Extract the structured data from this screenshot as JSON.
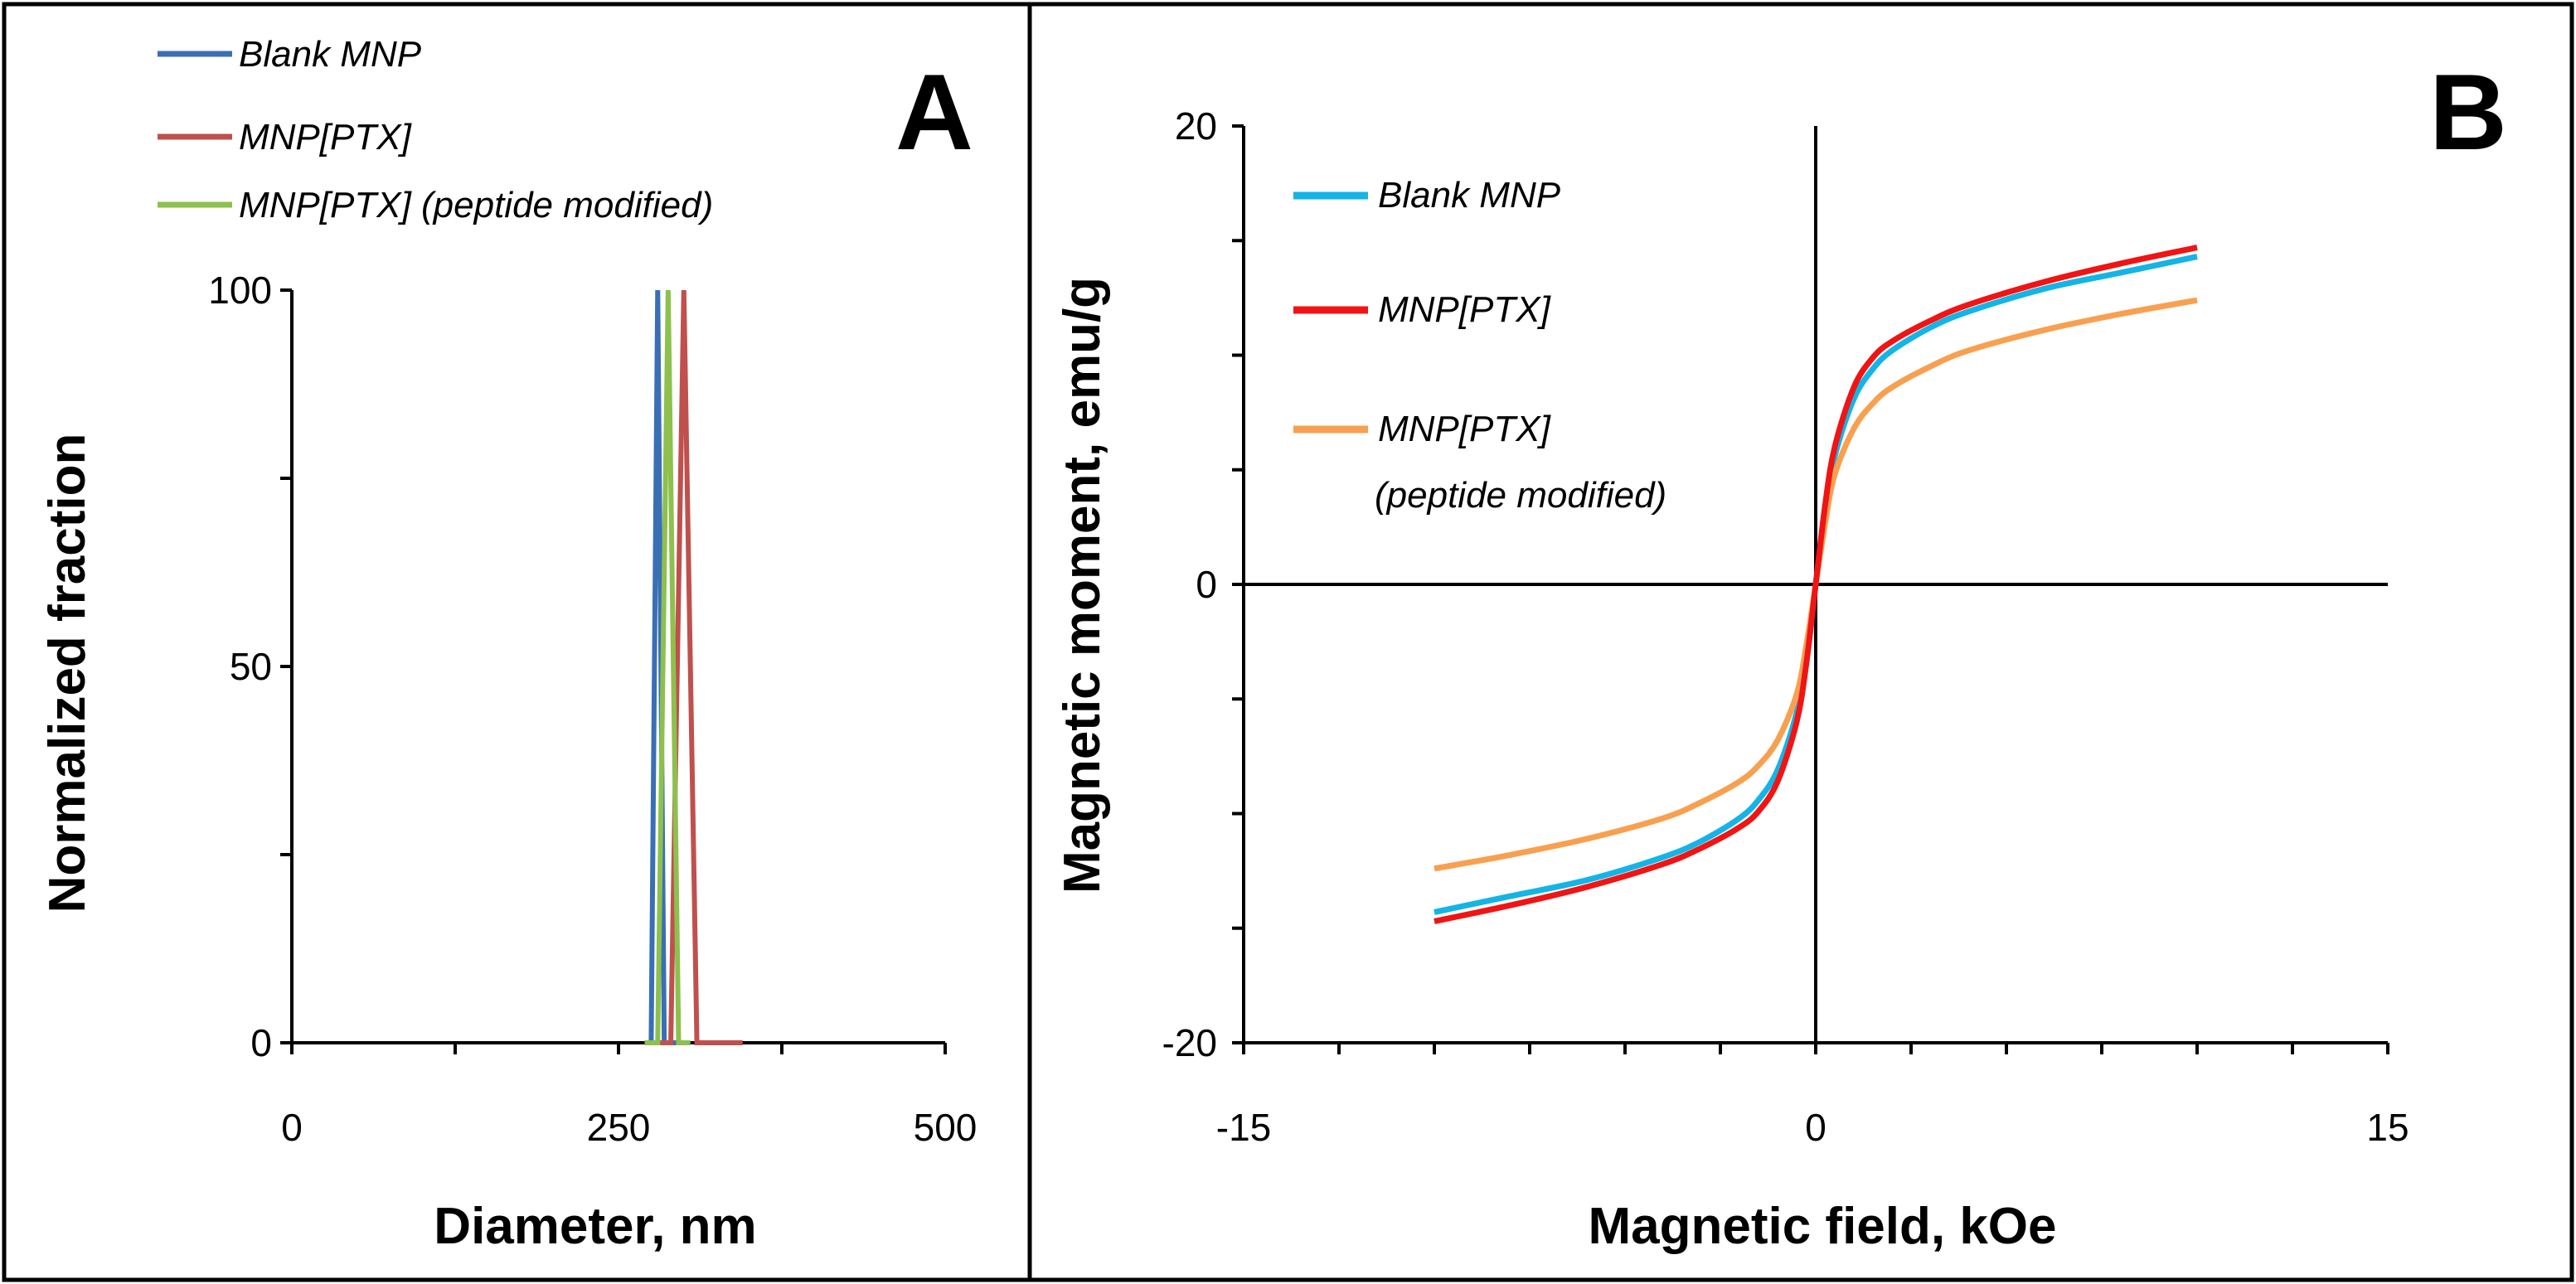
{
  "chart_data": [
    {
      "panel": "A",
      "type": "line",
      "title": "",
      "xlabel": "Diameter, nm",
      "ylabel": "Normalized  fraction",
      "xlim": [
        0,
        500
      ],
      "ylim": [
        0,
        100
      ],
      "xticks": [
        0,
        250,
        500
      ],
      "yticks": [
        0,
        50,
        100
      ],
      "legend_position": "top-left",
      "series": [
        {
          "name": "Blank MNP",
          "color": "#3A6FB5",
          "x": [
            270,
            275,
            280,
            285,
            290,
            295
          ],
          "y": [
            0,
            0,
            100,
            0,
            0,
            0
          ]
        },
        {
          "name": "MNP[PTX]",
          "color": "#C0504D",
          "x": [
            280,
            290,
            300,
            310,
            320,
            345
          ],
          "y": [
            0,
            0,
            100,
            0,
            0,
            0
          ]
        },
        {
          "name": "MNP[PTX] (peptide modified)",
          "color": "#8DC04D",
          "x": [
            270,
            280,
            288,
            296,
            305
          ],
          "y": [
            0,
            0,
            100,
            0,
            0
          ]
        }
      ]
    },
    {
      "panel": "B",
      "type": "line",
      "title": "",
      "xlabel": "Magnetic field, kOe",
      "ylabel": "Magnetic moment, emu/g",
      "xlim": [
        -15,
        15
      ],
      "ylim": [
        -20,
        20
      ],
      "xticks": [
        -15,
        0,
        15
      ],
      "yticks": [
        -20,
        0,
        20
      ],
      "legend_position": "top-left",
      "series": [
        {
          "name": "Blank MNP",
          "color": "#14B4E6",
          "x": [
            -10,
            -8,
            -6,
            -4,
            -3,
            -2,
            -1.5,
            -1,
            -0.5,
            -0.25,
            0,
            0.25,
            0.5,
            1,
            1.5,
            2,
            3,
            4,
            6,
            8,
            10
          ],
          "y": [
            -14.3,
            -13.6,
            -12.9,
            -11.9,
            -11.2,
            -10.2,
            -9.4,
            -8.1,
            -5.6,
            -3.2,
            0,
            3.2,
            5.6,
            8.1,
            9.4,
            10.2,
            11.2,
            11.9,
            12.9,
            13.6,
            14.3
          ]
        },
        {
          "name": "MNP[PTX]",
          "color": "#F01414",
          "x": [
            -10,
            -8,
            -6,
            -4,
            -3,
            -2,
            -1.5,
            -1,
            -0.5,
            -0.25,
            0,
            0.25,
            0.5,
            1,
            1.5,
            2,
            3,
            4,
            6,
            8,
            10
          ],
          "y": [
            -14.7,
            -14.0,
            -13.2,
            -12.2,
            -11.5,
            -10.6,
            -9.9,
            -8.6,
            -6.0,
            -3.5,
            0,
            3.5,
            6.0,
            8.6,
            9.9,
            10.6,
            11.5,
            12.2,
            13.2,
            14.0,
            14.7
          ]
        },
        {
          "name": "MNP[PTX]",
          "name_line2": "(peptide modified)",
          "color": "#F8A050",
          "x": [
            -10,
            -8,
            -6,
            -4,
            -3,
            -2,
            -1.5,
            -1,
            -0.5,
            -0.25,
            0,
            0.25,
            0.5,
            1,
            1.5,
            2,
            3,
            4,
            6,
            8,
            10
          ],
          "y": [
            -12.4,
            -11.8,
            -11.1,
            -10.2,
            -9.5,
            -8.6,
            -7.9,
            -6.8,
            -4.8,
            -2.7,
            0,
            2.7,
            4.8,
            6.8,
            7.9,
            8.6,
            9.5,
            10.2,
            11.1,
            11.8,
            12.4
          ]
        }
      ]
    }
  ]
}
